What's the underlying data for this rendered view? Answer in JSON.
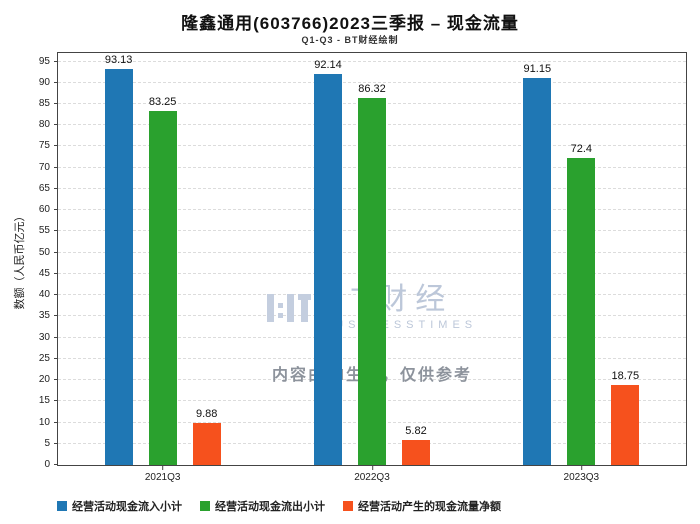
{
  "title": "隆鑫通用(603766)2023三季报 – 现金流量",
  "subtitle": "Q1-Q3 - BT财经绘制",
  "watermark": {
    "brand": "BT财经",
    "brand_sub": "BUSINESSTIMES",
    "notice": "内容由AI生成，仅供参考"
  },
  "chart_data": {
    "type": "bar",
    "categories": [
      "2021Q3",
      "2022Q3",
      "2023Q3"
    ],
    "series": [
      {
        "name": "经营活动现金流入小计",
        "color": "#1f77b4",
        "values": [
          93.13,
          92.14,
          91.15
        ]
      },
      {
        "name": "经营活动现金流出小计",
        "color": "#2aa12e",
        "values": [
          83.25,
          86.32,
          72.4
        ]
      },
      {
        "name": "经营活动产生的现金流量净额",
        "color": "#f6511d",
        "values": [
          9.88,
          5.82,
          18.75
        ]
      }
    ],
    "xlabel": "",
    "ylabel": "数额（人民币亿元）",
    "ylim": [
      0,
      97
    ],
    "yticks": [
      0,
      5,
      10,
      15,
      20,
      25,
      30,
      35,
      40,
      45,
      50,
      55,
      60,
      65,
      70,
      75,
      80,
      85,
      90,
      95
    ],
    "grid": true,
    "legend_position": "bottom"
  }
}
